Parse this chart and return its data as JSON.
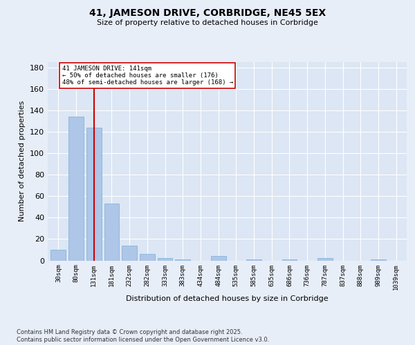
{
  "title": "41, JAMESON DRIVE, CORBRIDGE, NE45 5EX",
  "subtitle": "Size of property relative to detached houses in Corbridge",
  "xlabel": "Distribution of detached houses by size in Corbridge",
  "ylabel": "Number of detached properties",
  "categories": [
    "30sqm",
    "80sqm",
    "131sqm",
    "181sqm",
    "232sqm",
    "282sqm",
    "333sqm",
    "383sqm",
    "434sqm",
    "484sqm",
    "535sqm",
    "585sqm",
    "635sqm",
    "686sqm",
    "736sqm",
    "787sqm",
    "837sqm",
    "888sqm",
    "989sqm",
    "1039sqm"
  ],
  "values": [
    10,
    134,
    124,
    53,
    14,
    6,
    2,
    1,
    0,
    4,
    0,
    1,
    0,
    1,
    0,
    2,
    0,
    0,
    1,
    0
  ],
  "bar_color": "#aec6e8",
  "bar_edge_color": "#7badd4",
  "vline_x": 2,
  "vline_color": "#cc0000",
  "annotation_text": "41 JAMESON DRIVE: 141sqm\n← 50% of detached houses are smaller (176)\n48% of semi-detached houses are larger (168) →",
  "annotation_box_color": "#ffffff",
  "annotation_box_edge": "#cc0000",
  "ylim": [
    0,
    185
  ],
  "yticks": [
    0,
    20,
    40,
    60,
    80,
    100,
    120,
    140,
    160,
    180
  ],
  "bg_color": "#e8eef8",
  "plot_bg_color": "#dce6f4",
  "footer": "Contains HM Land Registry data © Crown copyright and database right 2025.\nContains public sector information licensed under the Open Government Licence v3.0."
}
